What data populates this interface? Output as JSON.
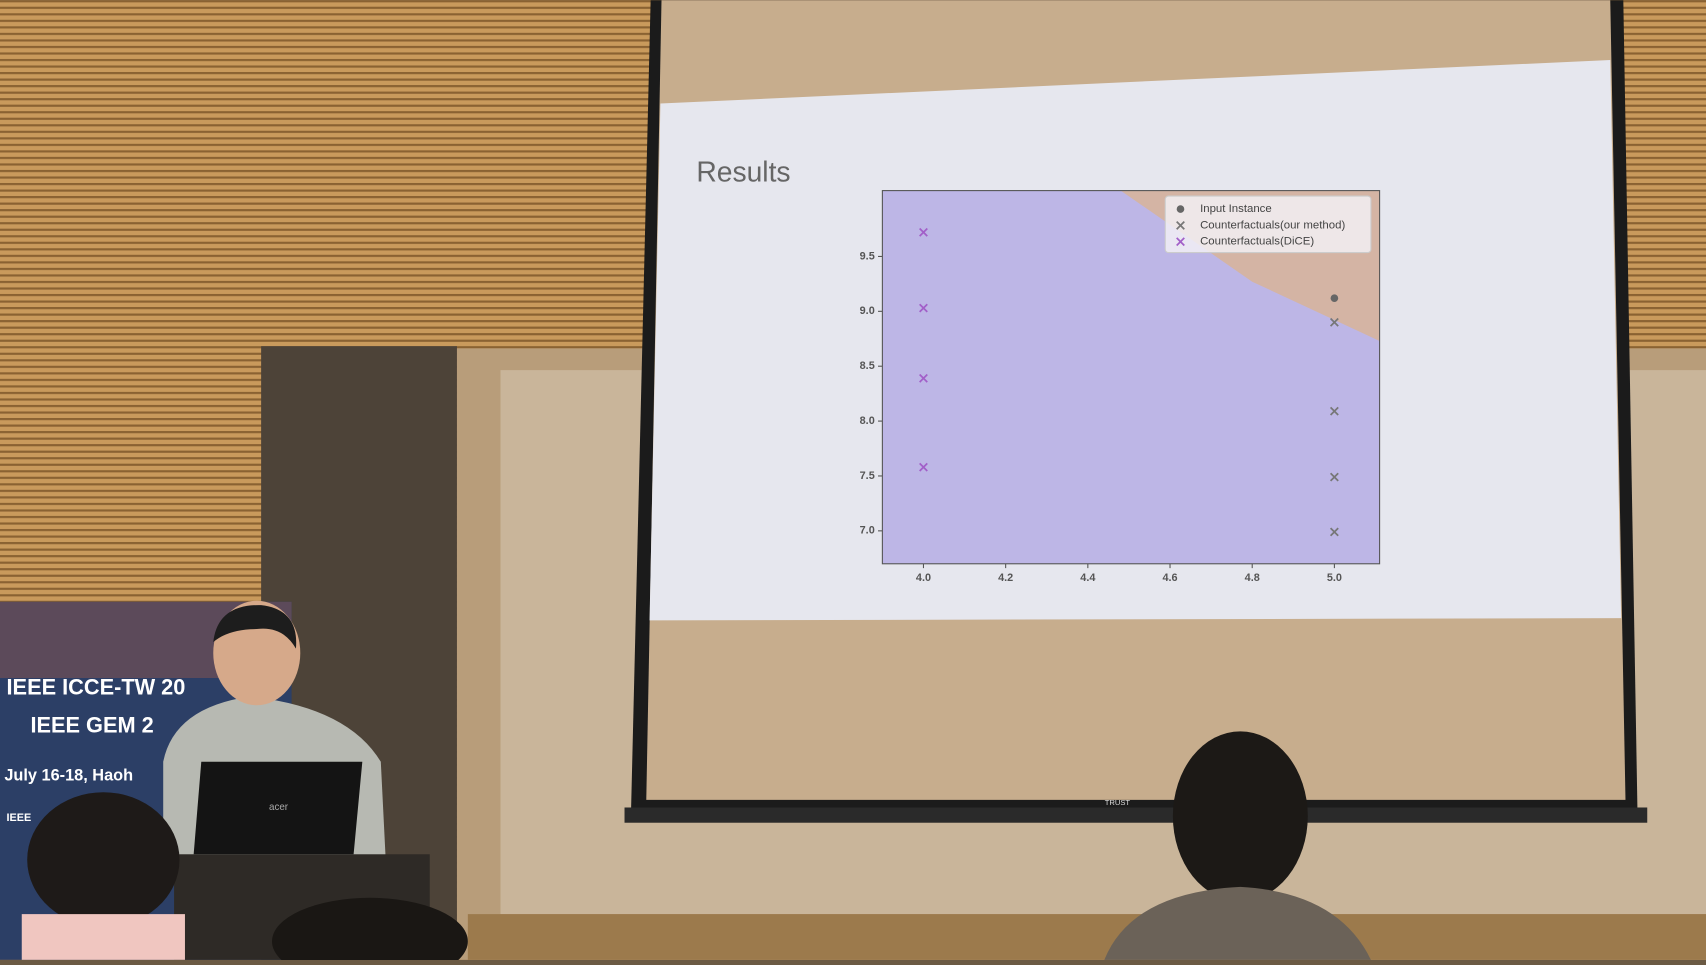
{
  "chart_data": {
    "type": "scatter",
    "title": "Results",
    "xlim": [
      3.9,
      5.11
    ],
    "ylim": [
      6.7,
      10.1
    ],
    "xticks": [
      4.0,
      4.2,
      4.4,
      4.6,
      4.8,
      5.0
    ],
    "yticks": [
      7.0,
      7.5,
      8.0,
      8.5,
      9.0,
      9.5
    ],
    "region_color": "#bdb6e6",
    "other_region_color": "#d4b4a4",
    "boundary_x": [
      4.48,
      4.8,
      5.11
    ],
    "boundary_y": [
      10.1,
      9.27,
      8.73
    ],
    "series": [
      {
        "name": "Input Instance",
        "color": "#666666",
        "marker": "o",
        "x": [
          5.0
        ],
        "y": [
          9.12
        ]
      },
      {
        "name": "Counterfactuals(our method)",
        "color": "#777777",
        "marker": "x",
        "x": [
          5.0,
          5.0,
          5.0,
          5.0
        ],
        "y": [
          8.9,
          8.09,
          7.49,
          6.99
        ]
      },
      {
        "name": "Counterfactuals(DiCE)",
        "color": "#a25fc8",
        "marker": "x",
        "x": [
          4.0,
          4.0,
          4.0,
          4.0
        ],
        "y": [
          9.72,
          9.03,
          8.39,
          7.58
        ]
      }
    ]
  },
  "scene": {
    "banner": [
      "IEEE ICCE-TW 20",
      "IEEE GEM 2",
      "July 16-18, Haoh",
      "IEEE"
    ],
    "laptop": "acer",
    "screen_brand": "TRUST"
  }
}
